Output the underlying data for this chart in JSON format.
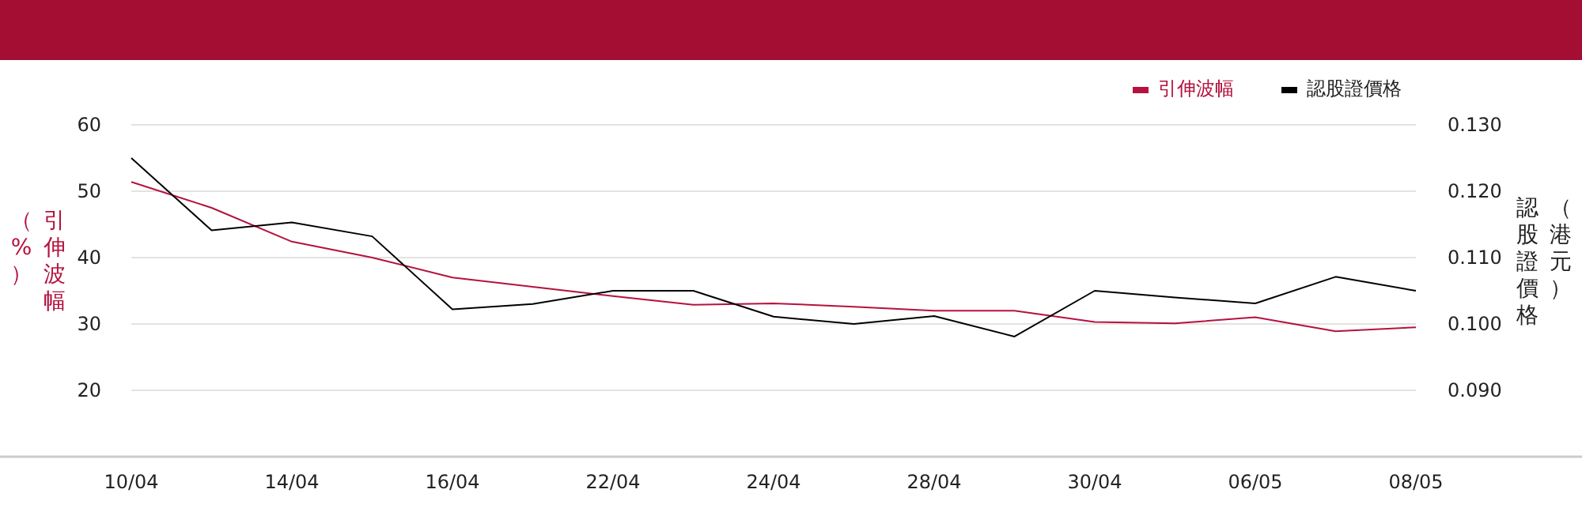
{
  "chart_data": {
    "type": "line",
    "ylabel": "引伸波幅（%）",
    "y2label": "認股證價格（港元）",
    "categories": [
      "10/04",
      null,
      "14/04",
      null,
      "16/04",
      null,
      "22/04",
      null,
      "24/04",
      null,
      "28/04",
      null,
      "30/04",
      null,
      "06/05",
      null,
      "08/05"
    ],
    "series": [
      {
        "name": "引伸波幅",
        "color": "#b5123e",
        "values": [
          51.4,
          47.5,
          42.4,
          40.0,
          37.0,
          35.6,
          34.2,
          32.9,
          33.1,
          32.6,
          32.0,
          32.0,
          30.3,
          30.1,
          31.0,
          28.9,
          29.5
        ]
      },
      {
        "name": "認股證價格",
        "color": "#000000",
        "axis": "y2",
        "values": [
          0.125,
          0.1141,
          0.1153,
          0.1132,
          0.1022,
          0.103,
          0.105,
          0.105,
          0.1011,
          0.1,
          0.1012,
          0.0981,
          0.105,
          0.104,
          0.1031,
          0.1071,
          0.105
        ]
      }
    ],
    "ylim": [
      10,
      60
    ],
    "yticks": [
      20,
      30,
      40,
      50,
      60
    ],
    "y2lim": [
      0.08,
      0.13
    ],
    "y2ticks": [
      {
        "value": 0.09,
        "label": "0.090"
      },
      {
        "value": 0.1,
        "label": "0.100"
      },
      {
        "value": 0.11,
        "label": "0.110"
      },
      {
        "value": 0.12,
        "label": "0.120"
      },
      {
        "value": 0.13,
        "label": "0.130"
      }
    ],
    "grid": "y",
    "legend": "top right",
    "marker": "none",
    "line_style": "solid"
  }
}
